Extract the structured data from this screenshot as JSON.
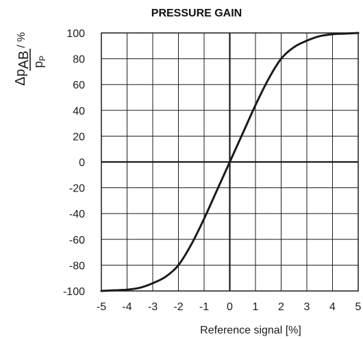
{
  "chart_data": {
    "type": "line",
    "title": "PRESSURE GAIN",
    "xlabel": "Reference signal [%]",
    "ylabel": {
      "numerator_symbol": "Δp",
      "numerator_subscript": "AB",
      "denominator_symbol": "p",
      "denominator_subscript": "P",
      "unit": "/ %"
    },
    "xlim": [
      -5,
      5
    ],
    "ylim": [
      -100,
      100
    ],
    "xticks": [
      "-5",
      "-4",
      "-3",
      "-2",
      "-1",
      "0",
      "1",
      "2",
      "3",
      "4",
      "5"
    ],
    "yticks": [
      "100",
      "80",
      "60",
      "40",
      "20",
      "0",
      "-20",
      "-40",
      "-60",
      "-80",
      "-100"
    ],
    "grid": true,
    "series": [
      {
        "x": [
          -5,
          -4.5,
          -4,
          -3.5,
          -3,
          -2.5,
          -2,
          -1.5,
          -1,
          -0.5,
          0,
          0.5,
          1,
          1.5,
          2,
          2.5,
          3,
          3.5,
          4,
          4.5,
          5
        ],
        "y": [
          -100,
          -99.5,
          -99,
          -97.5,
          -94,
          -89,
          -80,
          -64,
          -44,
          -22,
          0,
          22,
          44,
          64,
          80,
          89,
          94,
          97.5,
          99,
          99.5,
          100
        ]
      }
    ],
    "colors": {
      "line": "#1a1a1a",
      "grid": "#1a1a1a",
      "axes": "#1a1a1a"
    }
  }
}
